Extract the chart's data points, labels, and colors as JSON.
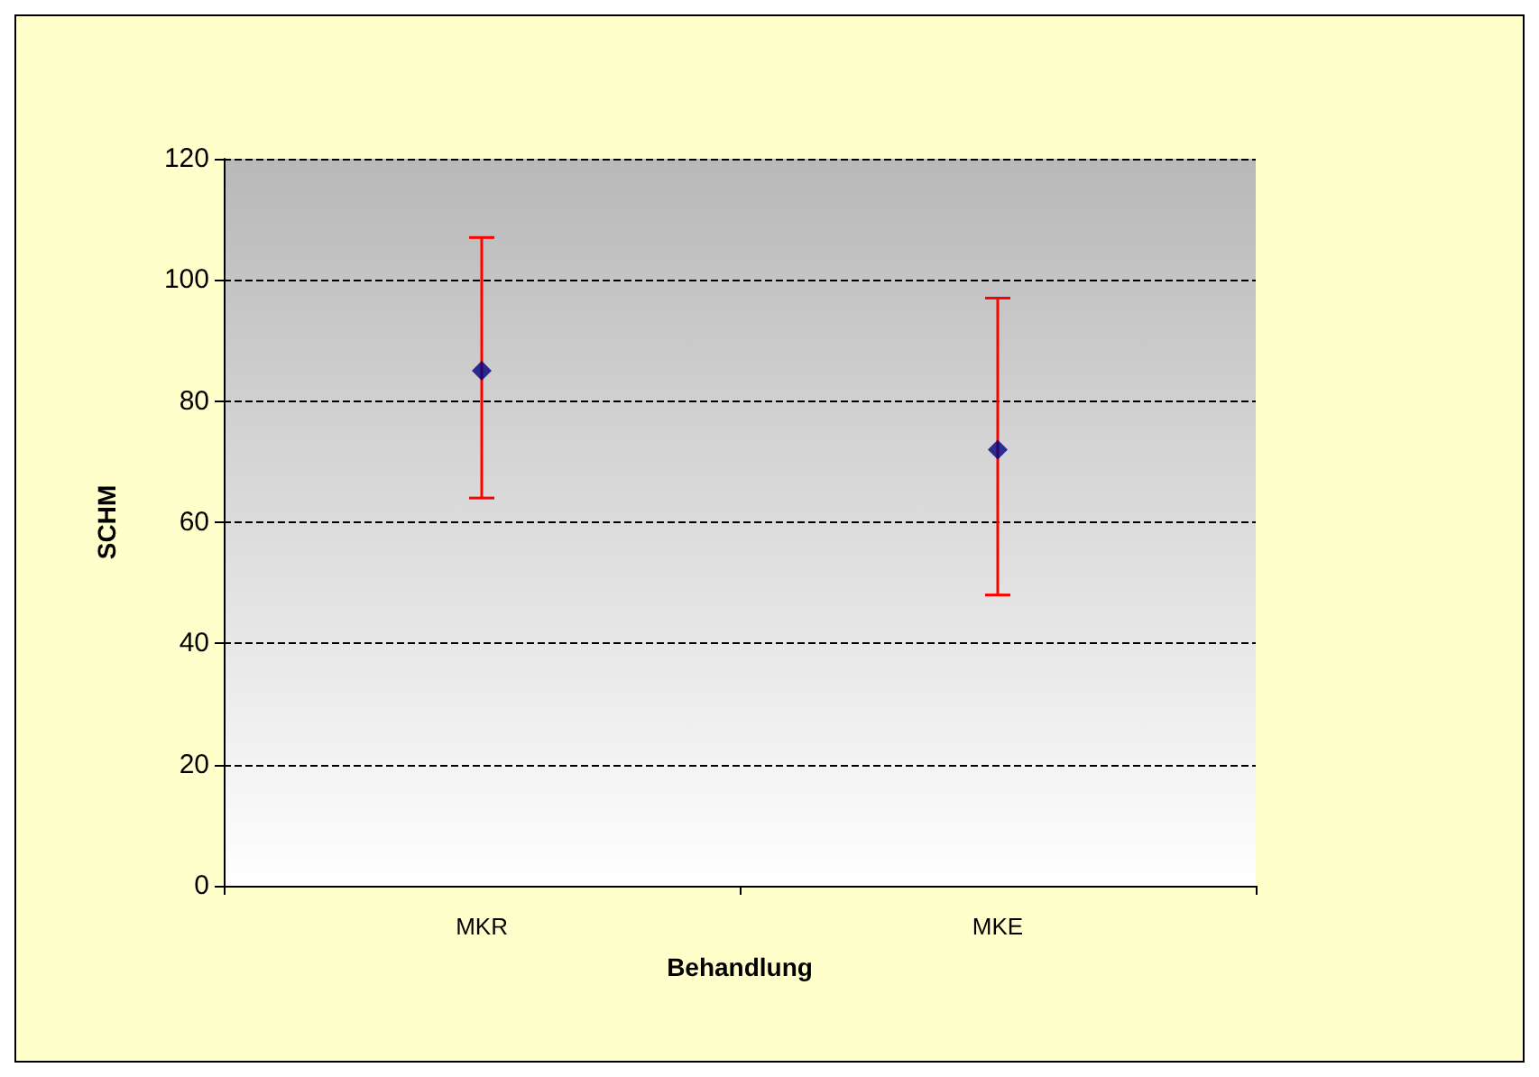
{
  "chart_data": {
    "type": "scatter",
    "xlabel": "Behandlung",
    "ylabel": "SCHM",
    "categories": [
      "MKR",
      "MKE"
    ],
    "series": [
      {
        "color": "#000080",
        "values": [
          85,
          72
        ],
        "errors": [
          [
            64,
            107
          ],
          [
            48,
            97
          ]
        ]
      }
    ],
    "ylim": [
      0,
      120
    ],
    "yticks": [
      0,
      20,
      40,
      60,
      80,
      100,
      120
    ],
    "grid": "y",
    "marker": "diamond"
  }
}
